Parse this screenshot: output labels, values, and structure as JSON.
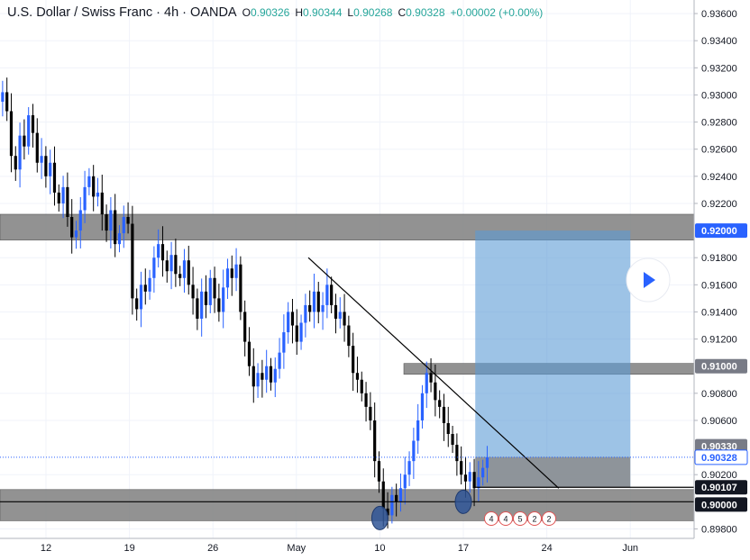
{
  "header": {
    "symbol": "U.S. Dollar / Swiss Franc · 4h · OANDA",
    "open_label": "O",
    "open": "0.90326",
    "high_label": "H",
    "high": "0.90344",
    "low_label": "L",
    "low": "0.90268",
    "close_label": "C",
    "close": "0.90328",
    "change": "+0.00002 (+0.00%)"
  },
  "colors": {
    "bull": "#2962ff",
    "bear": "#000000",
    "zone": "#7f7f7f",
    "target": "#5b9bd5",
    "play_button": "#2962ff"
  },
  "price_scale": {
    "ticks": [
      "0.93600",
      "0.93400",
      "0.93200",
      "0.93000",
      "0.92800",
      "0.92600",
      "0.92400",
      "0.92200",
      "0.91800",
      "0.91600",
      "0.91400",
      "0.91200",
      "0.90800",
      "0.90600",
      "0.90200",
      "0.89800"
    ],
    "badges": [
      {
        "text": "0.92000",
        "value": 0.92,
        "style": "blue"
      },
      {
        "text": "0.91000",
        "value": 0.91,
        "style": "gray"
      },
      {
        "text": "0.90330",
        "value": 0.9033,
        "style": "gray"
      },
      {
        "text": "0.90328",
        "value": 0.90328,
        "style": "blue-outline"
      },
      {
        "text": "0.90107",
        "value": 0.90107,
        "style": "black"
      },
      {
        "text": "0.90000",
        "value": 0.9,
        "style": "black"
      }
    ]
  },
  "time_scale": {
    "labels": [
      {
        "text": "12",
        "date": "2021-04-12"
      },
      {
        "text": "19",
        "date": "2021-04-19"
      },
      {
        "text": "26",
        "date": "2021-04-26"
      },
      {
        "text": "May",
        "date": "2021-05-03"
      },
      {
        "text": "10",
        "date": "2021-05-10"
      },
      {
        "text": "17",
        "date": "2021-05-17"
      },
      {
        "text": "24",
        "date": "2021-05-24"
      },
      {
        "text": "Jun",
        "date": "2021-05-31"
      }
    ]
  },
  "events": {
    "labels": [
      "4",
      "4",
      "5",
      "2",
      "2"
    ]
  },
  "chart_data": {
    "type": "candlestick",
    "x_axis": "date",
    "y_range": [
      0.8973,
      0.937
    ],
    "series": [
      {
        "name": "",
        "x_start": "2021-04-08",
        "x_end": "2021-05-19",
        "close": [
          0.9295,
          0.9302,
          0.9288,
          0.9255,
          0.9245,
          0.927,
          0.9262,
          0.9285,
          0.9272,
          0.925,
          0.9255,
          0.924,
          0.925,
          0.9228,
          0.922,
          0.9232,
          0.921,
          0.9195,
          0.92,
          0.9215,
          0.9232,
          0.924,
          0.9225,
          0.9228,
          0.9212,
          0.92,
          0.9215,
          0.919,
          0.9198,
          0.921,
          0.9205,
          0.915,
          0.9142,
          0.916,
          0.9155,
          0.9165,
          0.918,
          0.919,
          0.9178,
          0.917,
          0.9182,
          0.9168,
          0.9165,
          0.9178,
          0.916,
          0.915,
          0.9135,
          0.9155,
          0.9145,
          0.9165,
          0.915,
          0.914,
          0.9158,
          0.9172,
          0.9165,
          0.9175,
          0.914,
          0.9118,
          0.91,
          0.9085,
          0.9095,
          0.909,
          0.91,
          0.9088,
          0.9098,
          0.911,
          0.9125,
          0.914,
          0.913,
          0.9118,
          0.9132,
          0.9145,
          0.914,
          0.9155,
          0.914,
          0.9145,
          0.916,
          0.9145,
          0.9135,
          0.914,
          0.913,
          0.9115,
          0.9095,
          0.909,
          0.908,
          0.907,
          0.906,
          0.903,
          0.9015,
          0.8995,
          0.899,
          0.9005,
          0.9,
          0.901,
          0.902,
          0.903,
          0.9045,
          0.906,
          0.908,
          0.9095,
          0.9088,
          0.9075,
          0.907,
          0.9058,
          0.905,
          0.9042,
          0.903,
          0.902,
          0.9015,
          0.9022,
          0.901,
          0.9018,
          0.9025,
          0.90328
        ]
      }
    ],
    "annotations": {
      "resistance_zones": [
        {
          "from": 0.9193,
          "to": 0.9212
        },
        {
          "from": 0.9094,
          "to": 0.9102
        }
      ],
      "support_zone": {
        "from": 0.8986,
        "to": 0.9009
      },
      "horizontal_lines": [
        0.9,
        0.90107
      ],
      "target_box": {
        "from": 0.90107,
        "to": 0.92,
        "x_start": "2021-05-18",
        "x_end": "2021-05-31"
      },
      "entry_box": {
        "from": 0.90107,
        "to": 0.9033,
        "x_start": "2021-05-18",
        "x_end": "2021-05-31"
      },
      "trendline": [
        {
          "date": "2021-05-04",
          "value": 0.918
        },
        {
          "date": "2021-05-25",
          "value": 0.901
        }
      ],
      "low_markers": [
        {
          "date": "2021-05-10",
          "value": 0.8988
        },
        {
          "date": "2021-05-17",
          "value": 0.9
        }
      ]
    }
  }
}
